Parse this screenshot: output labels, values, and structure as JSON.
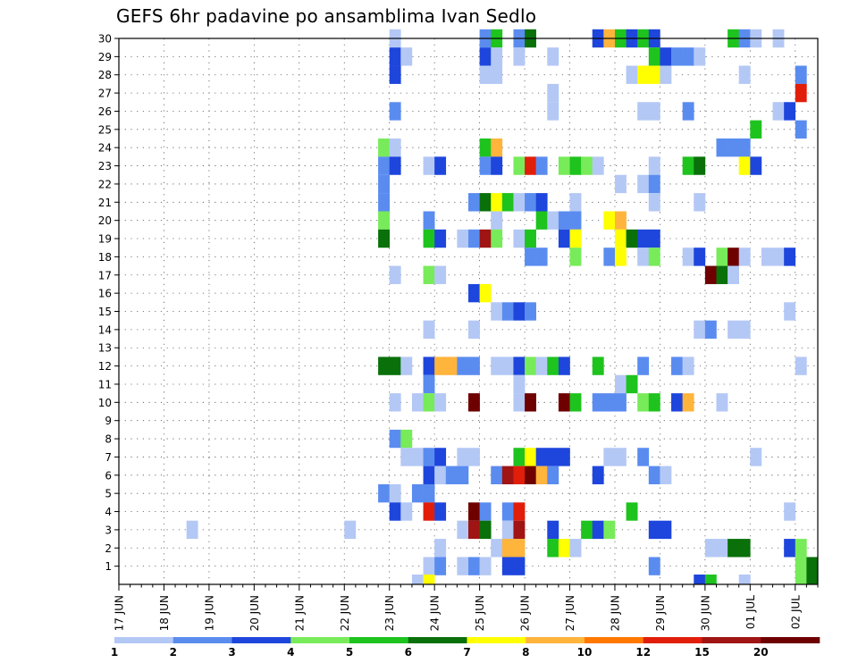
{
  "chart_data": {
    "type": "heatmap",
    "title": "GEFS 6hr padavine po ansamblima Ivan Sedlo",
    "x_tick_labels": [
      "17 JUN",
      "18 JUN",
      "19 JUN",
      "20 JUN",
      "21 JUN",
      "22 JUN",
      "23 JUN",
      "24 JUN",
      "25 JUN",
      "26 JUN",
      "27 JUN",
      "28 JUN",
      "29 JUN",
      "30 JUN",
      "01 JUL",
      "02 JUL"
    ],
    "y_tick_labels": [
      "1",
      "2",
      "3",
      "4",
      "5",
      "6",
      "7",
      "8",
      "9",
      "10",
      "11",
      "12",
      "13",
      "14",
      "15",
      "16",
      "17",
      "18",
      "19",
      "20",
      "21",
      "22",
      "23",
      "24",
      "25",
      "26",
      "27",
      "28",
      "29",
      "30"
    ],
    "x_unit": "6-hour steps from 17 JUN 00Z",
    "y_unit": "ensemble member",
    "colorbar": {
      "labels": [
        "1",
        "2",
        "3",
        "4",
        "5",
        "6",
        "7",
        "8",
        "10",
        "12",
        "15",
        "20"
      ],
      "colors": [
        "#b4c8f5",
        "#5a8cf0",
        "#1e46dc",
        "#78eb5a",
        "#1ec31e",
        "#0a700a",
        "#ffff00",
        "#ffb43c",
        "#ff7800",
        "#e11e0a",
        "#a01414",
        "#6e0000"
      ]
    },
    "cells": [
      [
        24,
        30,
        1
      ],
      [
        32,
        30,
        2
      ],
      [
        33,
        30,
        5
      ],
      [
        35,
        30,
        2
      ],
      [
        36,
        30,
        6
      ],
      [
        42,
        30,
        3
      ],
      [
        43,
        30,
        8
      ],
      [
        44,
        30,
        5
      ],
      [
        45,
        30,
        3
      ],
      [
        46,
        30,
        5
      ],
      [
        47,
        30,
        3
      ],
      [
        54,
        30,
        5
      ],
      [
        55,
        30,
        2
      ],
      [
        56,
        30,
        1
      ],
      [
        58,
        30,
        1
      ],
      [
        24,
        29,
        3
      ],
      [
        25,
        29,
        1
      ],
      [
        32,
        29,
        3
      ],
      [
        33,
        29,
        1
      ],
      [
        35,
        29,
        1
      ],
      [
        38,
        29,
        1
      ],
      [
        47,
        29,
        5
      ],
      [
        48,
        29,
        3
      ],
      [
        49,
        29,
        2
      ],
      [
        50,
        29,
        2
      ],
      [
        51,
        29,
        1
      ],
      [
        24,
        28,
        3
      ],
      [
        32,
        28,
        1
      ],
      [
        33,
        28,
        1
      ],
      [
        45,
        28,
        1
      ],
      [
        46,
        28,
        7
      ],
      [
        47,
        28,
        7
      ],
      [
        48,
        28,
        1
      ],
      [
        55,
        28,
        1
      ],
      [
        60,
        28,
        2
      ],
      [
        38,
        27,
        1
      ],
      [
        60,
        27,
        10
      ],
      [
        24,
        26,
        2
      ],
      [
        38,
        26,
        1
      ],
      [
        46,
        26,
        1
      ],
      [
        47,
        26,
        1
      ],
      [
        50,
        26,
        2
      ],
      [
        58,
        26,
        1
      ],
      [
        59,
        26,
        3
      ],
      [
        56,
        25,
        5
      ],
      [
        60,
        25,
        2
      ],
      [
        23,
        24,
        4
      ],
      [
        24,
        24,
        1
      ],
      [
        32,
        24,
        5
      ],
      [
        33,
        24,
        8
      ],
      [
        53,
        24,
        2
      ],
      [
        54,
        24,
        2
      ],
      [
        55,
        24,
        2
      ],
      [
        23,
        23,
        2
      ],
      [
        24,
        23,
        3
      ],
      [
        27,
        23,
        1
      ],
      [
        28,
        23,
        3
      ],
      [
        32,
        23,
        2
      ],
      [
        33,
        23,
        3
      ],
      [
        35,
        23,
        4
      ],
      [
        36,
        23,
        10
      ],
      [
        37,
        23,
        2
      ],
      [
        39,
        23,
        4
      ],
      [
        40,
        23,
        5
      ],
      [
        41,
        23,
        4
      ],
      [
        42,
        23,
        1
      ],
      [
        47,
        23,
        1
      ],
      [
        50,
        23,
        5
      ],
      [
        51,
        23,
        6
      ],
      [
        55,
        23,
        7
      ],
      [
        56,
        23,
        3
      ],
      [
        23,
        22,
        2
      ],
      [
        44,
        22,
        1
      ],
      [
        46,
        22,
        1
      ],
      [
        47,
        22,
        2
      ],
      [
        23,
        21,
        2
      ],
      [
        31,
        21,
        2
      ],
      [
        32,
        21,
        6
      ],
      [
        33,
        21,
        7
      ],
      [
        34,
        21,
        5
      ],
      [
        35,
        21,
        1
      ],
      [
        36,
        21,
        2
      ],
      [
        37,
        21,
        3
      ],
      [
        40,
        21,
        1
      ],
      [
        47,
        21,
        1
      ],
      [
        51,
        21,
        1
      ],
      [
        23,
        20,
        4
      ],
      [
        27,
        20,
        2
      ],
      [
        33,
        20,
        1
      ],
      [
        37,
        20,
        5
      ],
      [
        38,
        20,
        1
      ],
      [
        39,
        20,
        2
      ],
      [
        40,
        20,
        2
      ],
      [
        43,
        20,
        7
      ],
      [
        44,
        20,
        8
      ],
      [
        23,
        19,
        6
      ],
      [
        27,
        19,
        5
      ],
      [
        28,
        19,
        3
      ],
      [
        30,
        19,
        1
      ],
      [
        31,
        19,
        2
      ],
      [
        32,
        19,
        11
      ],
      [
        33,
        19,
        4
      ],
      [
        35,
        19,
        1
      ],
      [
        36,
        19,
        5
      ],
      [
        39,
        19,
        3
      ],
      [
        40,
        19,
        7
      ],
      [
        44,
        19,
        7
      ],
      [
        45,
        19,
        6
      ],
      [
        46,
        19,
        3
      ],
      [
        47,
        19,
        3
      ],
      [
        36,
        18,
        2
      ],
      [
        37,
        18,
        2
      ],
      [
        40,
        18,
        4
      ],
      [
        43,
        18,
        2
      ],
      [
        44,
        18,
        7
      ],
      [
        46,
        18,
        1
      ],
      [
        47,
        18,
        4
      ],
      [
        50,
        18,
        1
      ],
      [
        51,
        18,
        3
      ],
      [
        53,
        18,
        4
      ],
      [
        54,
        18,
        12
      ],
      [
        55,
        18,
        1
      ],
      [
        57,
        18,
        1
      ],
      [
        58,
        18,
        1
      ],
      [
        59,
        18,
        3
      ],
      [
        24,
        17,
        1
      ],
      [
        27,
        17,
        4
      ],
      [
        28,
        17,
        1
      ],
      [
        52,
        17,
        12
      ],
      [
        53,
        17,
        6
      ],
      [
        54,
        17,
        1
      ],
      [
        31,
        16,
        3
      ],
      [
        32,
        16,
        7
      ],
      [
        33,
        15,
        1
      ],
      [
        34,
        15,
        2
      ],
      [
        35,
        15,
        3
      ],
      [
        36,
        15,
        2
      ],
      [
        59,
        15,
        1
      ],
      [
        27,
        14,
        1
      ],
      [
        31,
        14,
        1
      ],
      [
        51,
        14,
        1
      ],
      [
        52,
        14,
        2
      ],
      [
        54,
        14,
        1
      ],
      [
        55,
        14,
        1
      ],
      [
        23,
        12,
        6
      ],
      [
        24,
        12,
        6
      ],
      [
        25,
        12,
        1
      ],
      [
        27,
        12,
        3
      ],
      [
        28,
        12,
        8
      ],
      [
        29,
        12,
        8
      ],
      [
        30,
        12,
        2
      ],
      [
        31,
        12,
        2
      ],
      [
        33,
        12,
        1
      ],
      [
        34,
        12,
        1
      ],
      [
        35,
        12,
        3
      ],
      [
        36,
        12,
        4
      ],
      [
        37,
        12,
        1
      ],
      [
        38,
        12,
        5
      ],
      [
        39,
        12,
        3
      ],
      [
        42,
        12,
        5
      ],
      [
        46,
        12,
        2
      ],
      [
        49,
        12,
        2
      ],
      [
        50,
        12,
        1
      ],
      [
        60,
        12,
        1
      ],
      [
        27,
        11,
        2
      ],
      [
        35,
        11,
        1
      ],
      [
        44,
        11,
        1
      ],
      [
        45,
        11,
        5
      ],
      [
        24,
        10,
        1
      ],
      [
        26,
        10,
        1
      ],
      [
        27,
        10,
        4
      ],
      [
        28,
        10,
        1
      ],
      [
        31,
        10,
        12
      ],
      [
        35,
        10,
        1
      ],
      [
        36,
        10,
        12
      ],
      [
        39,
        10,
        12
      ],
      [
        40,
        10,
        5
      ],
      [
        42,
        10,
        2
      ],
      [
        43,
        10,
        2
      ],
      [
        44,
        10,
        2
      ],
      [
        46,
        10,
        4
      ],
      [
        47,
        10,
        5
      ],
      [
        49,
        10,
        3
      ],
      [
        50,
        10,
        8
      ],
      [
        53,
        10,
        1
      ],
      [
        24,
        8,
        2
      ],
      [
        25,
        8,
        4
      ],
      [
        25,
        7,
        1
      ],
      [
        26,
        7,
        1
      ],
      [
        27,
        7,
        2
      ],
      [
        28,
        7,
        3
      ],
      [
        30,
        7,
        1
      ],
      [
        31,
        7,
        1
      ],
      [
        35,
        7,
        5
      ],
      [
        36,
        7,
        7
      ],
      [
        37,
        7,
        3
      ],
      [
        38,
        7,
        3
      ],
      [
        39,
        7,
        3
      ],
      [
        43,
        7,
        1
      ],
      [
        44,
        7,
        1
      ],
      [
        46,
        7,
        2
      ],
      [
        56,
        7,
        1
      ],
      [
        27,
        6,
        3
      ],
      [
        28,
        6,
        1
      ],
      [
        29,
        6,
        2
      ],
      [
        30,
        6,
        2
      ],
      [
        33,
        6,
        2
      ],
      [
        34,
        6,
        11
      ],
      [
        35,
        6,
        10
      ],
      [
        36,
        6,
        12
      ],
      [
        37,
        6,
        8
      ],
      [
        38,
        6,
        2
      ],
      [
        42,
        6,
        3
      ],
      [
        47,
        6,
        2
      ],
      [
        48,
        6,
        1
      ],
      [
        23,
        5,
        2
      ],
      [
        24,
        5,
        1
      ],
      [
        26,
        5,
        2
      ],
      [
        27,
        5,
        2
      ],
      [
        24,
        4,
        3
      ],
      [
        25,
        4,
        1
      ],
      [
        27,
        4,
        10
      ],
      [
        28,
        4,
        3
      ],
      [
        31,
        4,
        12
      ],
      [
        32,
        4,
        2
      ],
      [
        34,
        4,
        2
      ],
      [
        35,
        4,
        10
      ],
      [
        45,
        4,
        5
      ],
      [
        59,
        4,
        1
      ],
      [
        6,
        3,
        1
      ],
      [
        20,
        3,
        1
      ],
      [
        30,
        3,
        1
      ],
      [
        31,
        3,
        11
      ],
      [
        32,
        3,
        6
      ],
      [
        34,
        3,
        1
      ],
      [
        35,
        3,
        11
      ],
      [
        38,
        3,
        3
      ],
      [
        41,
        3,
        5
      ],
      [
        42,
        3,
        3
      ],
      [
        43,
        3,
        4
      ],
      [
        47,
        3,
        3
      ],
      [
        48,
        3,
        3
      ],
      [
        28,
        2,
        1
      ],
      [
        33,
        2,
        1
      ],
      [
        34,
        2,
        8
      ],
      [
        35,
        2,
        8
      ],
      [
        38,
        2,
        5
      ],
      [
        39,
        2,
        7
      ],
      [
        40,
        2,
        1
      ],
      [
        52,
        2,
        1
      ],
      [
        53,
        2,
        1
      ],
      [
        54,
        2,
        6
      ],
      [
        55,
        2,
        6
      ],
      [
        59,
        2,
        3
      ],
      [
        60,
        2,
        4
      ],
      [
        27,
        1,
        1
      ],
      [
        28,
        1,
        2
      ],
      [
        30,
        1,
        1
      ],
      [
        31,
        1,
        2
      ],
      [
        32,
        1,
        1
      ],
      [
        34,
        1,
        3
      ],
      [
        35,
        1,
        3
      ],
      [
        47,
        1,
        2
      ],
      [
        60,
        1,
        4
      ],
      [
        61,
        1,
        6
      ],
      [
        26,
        0,
        1
      ],
      [
        27,
        0,
        7
      ],
      [
        51,
        0,
        3
      ],
      [
        52,
        0,
        5
      ],
      [
        55,
        0,
        1
      ],
      [
        60,
        0,
        4
      ],
      [
        61,
        0,
        6
      ]
    ]
  }
}
